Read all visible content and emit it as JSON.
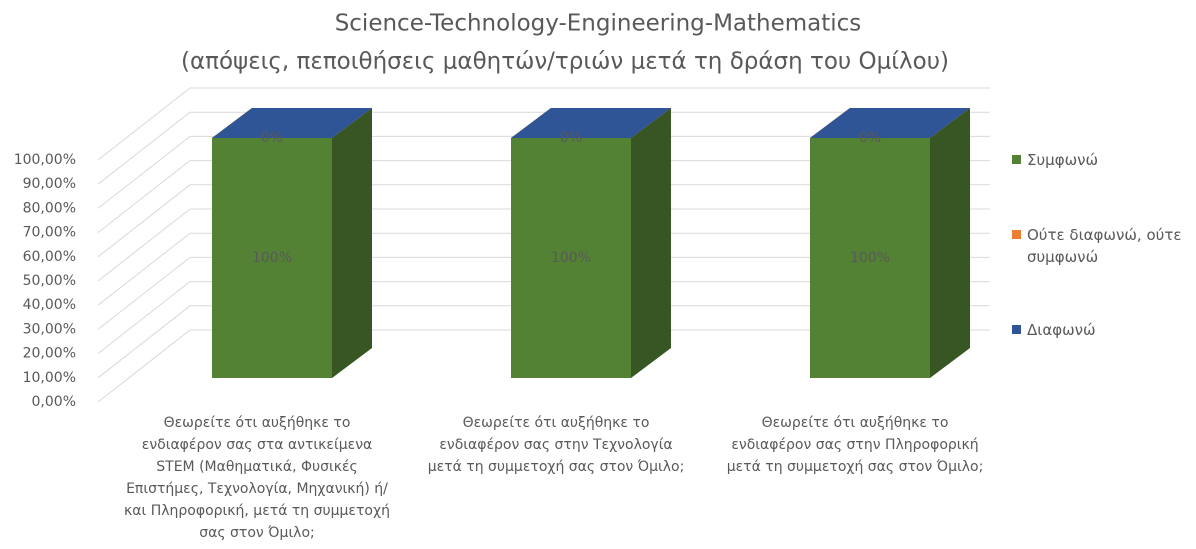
{
  "chart_data": {
    "type": "bar3d_stacked",
    "title": "Science-Technology-Engineering-Mathematics",
    "subtitle": "(απόψεις, πεποιθήσεις μαθητών/τριών μετά τη δράση του Ομίλου)",
    "categories": [
      "Θεωρείτε ότι αυξήθηκε το ενδιαφέρον σας στα αντικείμενα STEM (Μαθηματικά, Φυσικές Επιστήμες, Τεχνολογία, Μηχανική) ή/και Πληροφορική, μετά τη συμμετοχή σας στον Όμιλο;",
      "Θεωρείτε ότι αυξήθηκε το ενδιαφέρον σας στην Τεχνολογία μετά τη συμμετοχή σας στον Όμιλο;",
      "Θεωρείτε ότι αυξήθηκε το ενδιαφέρον σας στην Πληροφορική μετά τη συμμετοχή σας στον Όμιλο;"
    ],
    "series": [
      {
        "name": "Συμφωνώ",
        "color": "#548235",
        "values": [
          100,
          100,
          100
        ],
        "value_labels": [
          "100%",
          "100%",
          "100%"
        ]
      },
      {
        "name": "Ούτε διαφωνώ, ούτε συμφωνώ",
        "color": "#ed7d31",
        "values": [
          0,
          0,
          0
        ]
      },
      {
        "name": "Διαφωνώ",
        "color": "#2f5597",
        "values": [
          0,
          0,
          0
        ],
        "value_labels": [
          "0%",
          "0%",
          "0%"
        ]
      }
    ],
    "ylim": [
      0,
      100
    ],
    "yticks": [
      {
        "value": 0,
        "label": "0,00%"
      },
      {
        "value": 10,
        "label": "10,00%"
      },
      {
        "value": 20,
        "label": "20,00%"
      },
      {
        "value": 30,
        "label": "30,00%"
      },
      {
        "value": 40,
        "label": "40,00%"
      },
      {
        "value": 50,
        "label": "50,00%"
      },
      {
        "value": 60,
        "label": "60,00%"
      },
      {
        "value": 70,
        "label": "70,00%"
      },
      {
        "value": 80,
        "label": "80,00%"
      },
      {
        "value": 90,
        "label": "90,00%"
      },
      {
        "value": 100,
        "label": "100,00%"
      }
    ],
    "grid": true,
    "legend": "right"
  }
}
